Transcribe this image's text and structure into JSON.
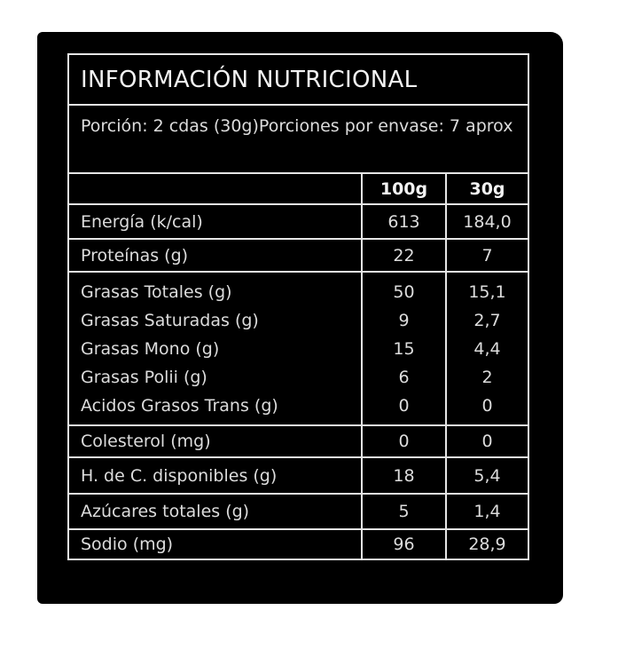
{
  "label": {
    "title": "INFORMACIÓN NUTRICIONAL",
    "portion": "Porción: 2 cdas (30g)",
    "servings": "Porciones por envase: 7 aprox",
    "columns": [
      "",
      "100g",
      "30g"
    ],
    "groups": [
      {
        "rows": [
          {
            "name": "Energía (k/cal)",
            "per100": "613",
            "perPortion": "184,0"
          }
        ]
      },
      {
        "rows": [
          {
            "name": "Proteínas (g)",
            "per100": "22",
            "perPortion": "7"
          }
        ]
      },
      {
        "rows": [
          {
            "name": "Grasas Totales (g)",
            "per100": "50",
            "perPortion": "15,1"
          },
          {
            "name": "Grasas Saturadas (g)",
            "per100": "9",
            "perPortion": "2,7"
          },
          {
            "name": "Grasas Mono (g)",
            "per100": "15",
            "perPortion": "4,4"
          },
          {
            "name": "Grasas Polii (g)",
            "per100": "6",
            "perPortion": "2"
          },
          {
            "name": "Acidos Grasos Trans (g)",
            "per100": "0",
            "perPortion": "0"
          }
        ]
      },
      {
        "rows": [
          {
            "name": "Colesterol (mg)",
            "per100": "0",
            "perPortion": "0"
          }
        ]
      },
      {
        "rows": [
          {
            "name": "H. de C. disponibles (g)",
            "per100": "18",
            "perPortion": "5,4"
          }
        ]
      },
      {
        "rows": [
          {
            "name": "Azúcares totales (g)",
            "per100": "5",
            "perPortion": "1,4"
          }
        ]
      },
      {
        "rows": [
          {
            "name": "Sodio (mg)",
            "per100": "96",
            "perPortion": "28,9"
          }
        ]
      }
    ]
  },
  "colors": {
    "background": "#000000",
    "text": "#f2f2f2",
    "lines": "#e6e6e6"
  }
}
